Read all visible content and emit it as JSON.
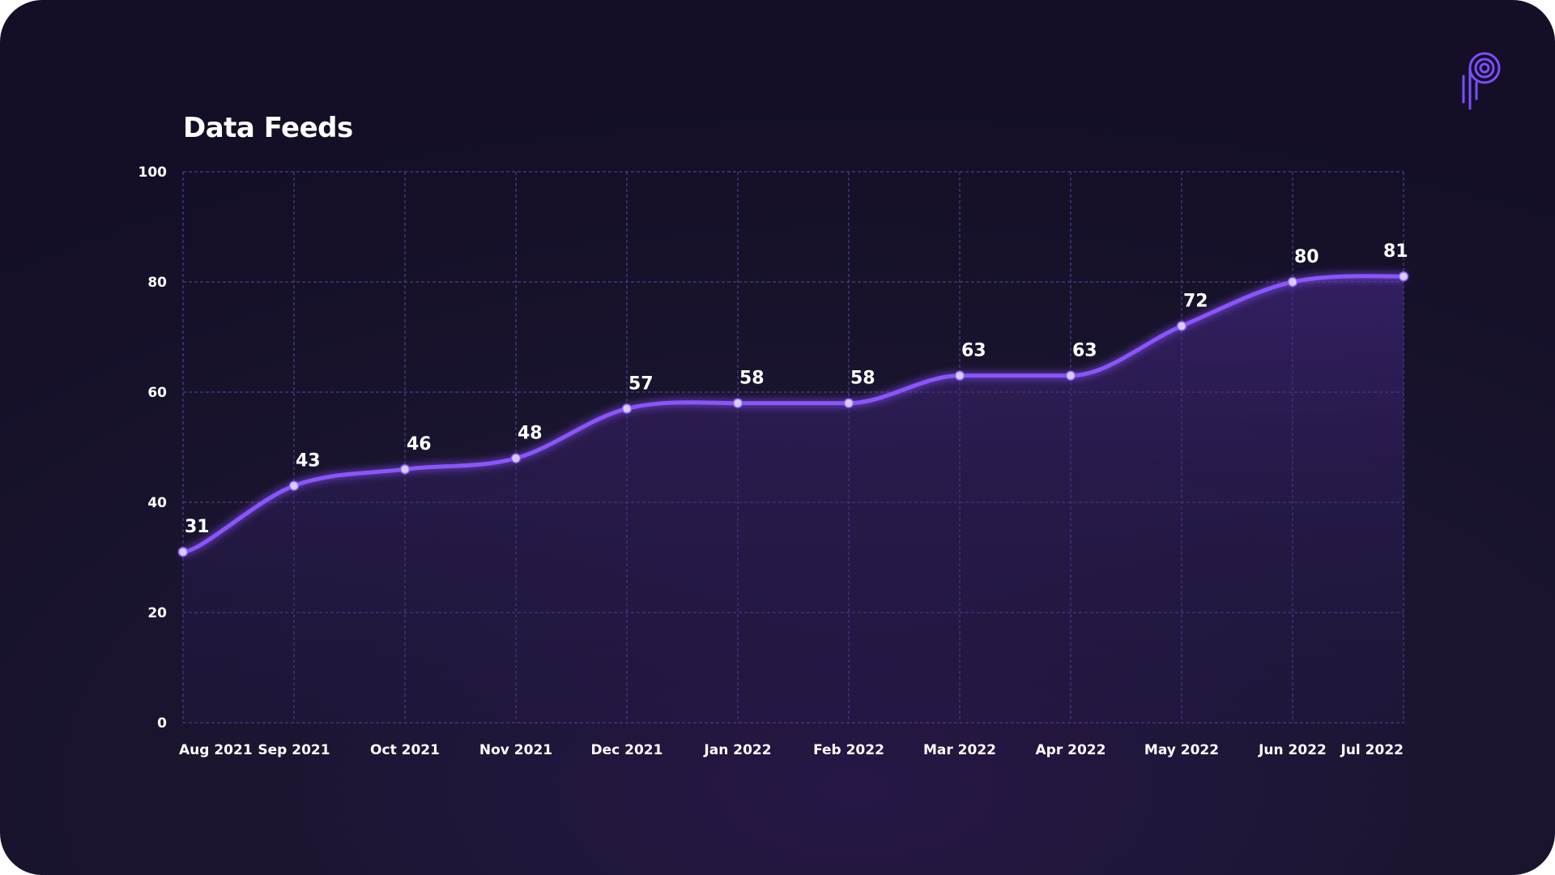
{
  "colors": {
    "line": "#8a55ff",
    "point": "#d7cdf5",
    "grid": "#4a3f8a",
    "text": "#ffffff"
  },
  "logo": {
    "icon": "brand-logo-icon"
  },
  "chart_data": {
    "type": "area",
    "title": "Data Feeds",
    "xlabel": "",
    "ylabel": "",
    "categories": [
      "Aug 2021",
      "Sep 2021",
      "Oct 2021",
      "Nov 2021",
      "Dec 2021",
      "Jan 2022",
      "Feb 2022",
      "Mar 2022",
      "Apr 2022",
      "May 2022",
      "Jun 2022",
      "Jul 2022"
    ],
    "series": [
      {
        "values": [
          31,
          43,
          46,
          48,
          57,
          58,
          58,
          63,
          63,
          72,
          80,
          81
        ]
      }
    ],
    "ylim": [
      0,
      100
    ],
    "yticks": [
      0,
      20,
      40,
      60,
      80,
      100
    ],
    "grid": true,
    "legend": "none",
    "data_labels": true
  }
}
